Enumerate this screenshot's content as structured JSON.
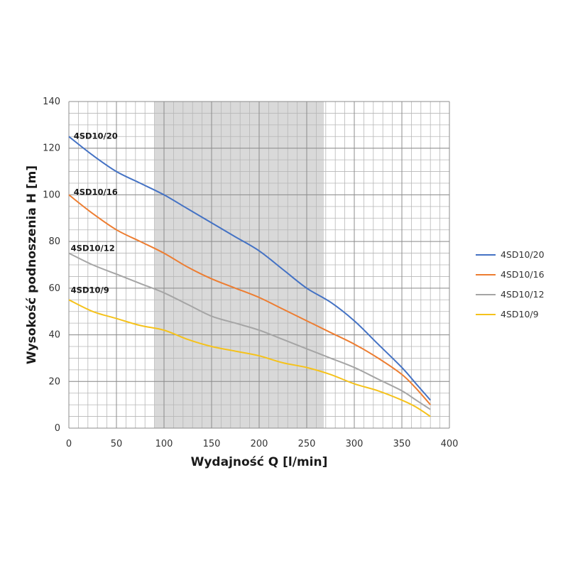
{
  "chart_data": {
    "type": "line",
    "title": "",
    "xlabel": "Wydajność Q [l/min]",
    "ylabel": "Wysokość podnoszenia H [m]",
    "xlim": [
      0,
      400
    ],
    "ylim": [
      0,
      140
    ],
    "x_ticks": [
      0,
      50,
      100,
      150,
      200,
      250,
      300,
      350,
      400
    ],
    "y_ticks": [
      0,
      20,
      40,
      60,
      80,
      100,
      120,
      140
    ],
    "grid": true,
    "legend_position": "right",
    "highlight_range": [
      90,
      268
    ],
    "series": [
      {
        "name": "4SD10/20",
        "color": "#4472C4",
        "points": [
          [
            0,
            125
          ],
          [
            25,
            117
          ],
          [
            50,
            110
          ],
          [
            75,
            105
          ],
          [
            100,
            100
          ],
          [
            125,
            94
          ],
          [
            150,
            88
          ],
          [
            175,
            82
          ],
          [
            200,
            76
          ],
          [
            225,
            68
          ],
          [
            250,
            60
          ],
          [
            275,
            54
          ],
          [
            300,
            46
          ],
          [
            325,
            36
          ],
          [
            350,
            26
          ],
          [
            365,
            19
          ],
          [
            380,
            12
          ]
        ]
      },
      {
        "name": "4SD10/16",
        "color": "#ED7D31",
        "points": [
          [
            0,
            100
          ],
          [
            25,
            92
          ],
          [
            50,
            85
          ],
          [
            75,
            80
          ],
          [
            100,
            75
          ],
          [
            125,
            69
          ],
          [
            150,
            64
          ],
          [
            175,
            60
          ],
          [
            200,
            56
          ],
          [
            225,
            51
          ],
          [
            250,
            46
          ],
          [
            275,
            41
          ],
          [
            300,
            36
          ],
          [
            325,
            30
          ],
          [
            350,
            23
          ],
          [
            365,
            17
          ],
          [
            380,
            10
          ]
        ]
      },
      {
        "name": "4SD10/12",
        "color": "#A5A5A5",
        "points": [
          [
            0,
            75
          ],
          [
            25,
            70
          ],
          [
            50,
            66
          ],
          [
            75,
            62
          ],
          [
            100,
            58
          ],
          [
            125,
            53
          ],
          [
            150,
            48
          ],
          [
            175,
            45
          ],
          [
            200,
            42
          ],
          [
            225,
            38
          ],
          [
            250,
            34
          ],
          [
            275,
            30
          ],
          [
            300,
            26
          ],
          [
            325,
            21
          ],
          [
            350,
            16
          ],
          [
            365,
            12
          ],
          [
            380,
            8
          ]
        ]
      },
      {
        "name": "4SD10/9",
        "color": "#F5C21B",
        "points": [
          [
            0,
            55
          ],
          [
            25,
            50
          ],
          [
            50,
            47
          ],
          [
            75,
            44
          ],
          [
            100,
            42
          ],
          [
            125,
            38
          ],
          [
            150,
            35
          ],
          [
            175,
            33
          ],
          [
            200,
            31
          ],
          [
            225,
            28
          ],
          [
            250,
            26
          ],
          [
            275,
            23
          ],
          [
            300,
            19
          ],
          [
            325,
            16
          ],
          [
            350,
            12
          ],
          [
            365,
            9
          ],
          [
            380,
            5
          ]
        ]
      }
    ],
    "curve_labels": [
      {
        "text": "4SD10/20",
        "x": 5,
        "y": 124
      },
      {
        "text": "4SD10/16",
        "x": 5,
        "y": 100
      },
      {
        "text": "4SD10/12",
        "x": 2,
        "y": 76
      },
      {
        "text": "4SD10/9",
        "x": 2,
        "y": 58
      }
    ]
  }
}
